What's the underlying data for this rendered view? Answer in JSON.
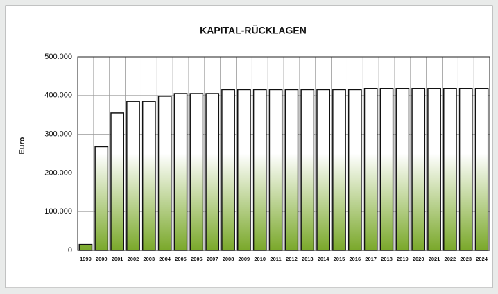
{
  "chart_data": {
    "type": "bar",
    "title": "KAPITAL-RÜCKLAGEN",
    "y_label": "Euro",
    "categories": [
      "1999",
      "2000",
      "2001",
      "2002",
      "2003",
      "2004",
      "2005",
      "2006",
      "2007",
      "2008",
      "2009",
      "2010",
      "2011",
      "2012",
      "2013",
      "2014",
      "2015",
      "2016",
      "2017",
      "2018",
      "2019",
      "2020",
      "2021",
      "2022",
      "2023",
      "2024"
    ],
    "values": [
      15000,
      268000,
      355000,
      385000,
      385000,
      398000,
      405000,
      405000,
      405000,
      415000,
      415000,
      415000,
      415000,
      415000,
      415000,
      415000,
      415000,
      415000,
      418000,
      418000,
      418000,
      418000,
      418000,
      418000,
      418000,
      418000
    ],
    "color": "#7aa82a",
    "ylim": [
      0,
      500000
    ],
    "yticks": [
      0,
      {
        "value": 100000,
        "label": "100.000"
      },
      {
        "value": 200000,
        "label": "200.000"
      },
      {
        "value": 300000,
        "label": "300.000"
      },
      {
        "value": 400000,
        "label": "400.000"
      },
      {
        "value": 500000,
        "label": "500.000"
      }
    ],
    "grid": true
  }
}
